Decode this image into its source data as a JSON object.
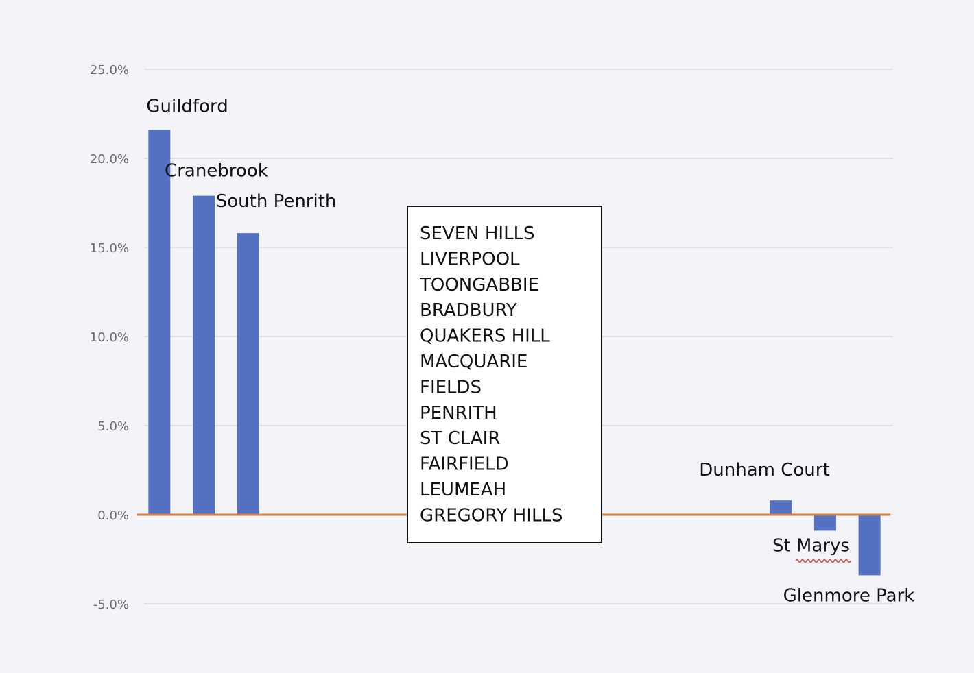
{
  "chart_data": {
    "type": "bar",
    "title": "",
    "xlabel": "",
    "ylabel": "",
    "ylim": [
      -0.05,
      0.25
    ],
    "yticks": [
      "25.0%",
      "20.0%",
      "15.0%",
      "10.0%",
      "5.0%",
      "0.0%",
      "-5.0%"
    ],
    "grid": true,
    "categories": [
      "Guildford",
      "Cranebrook",
      "South Penrith",
      "SEVEN HILLS",
      "LIVERPOOL",
      "TOONGABBIE",
      "BRADBURY",
      "QUAKERS HILL",
      "MACQUARIE FIELDS",
      "PENRITH",
      "ST CLAIR",
      "FAIRFIELD",
      "LEUMEAH",
      "GREGORY HILLS",
      "Dunham Court",
      "St Marys",
      "Glenmore Park"
    ],
    "values": [
      0.216,
      0.179,
      0.158,
      null,
      null,
      null,
      null,
      null,
      null,
      null,
      null,
      null,
      null,
      null,
      0.008,
      -0.009,
      -0.034
    ],
    "labelled_bars": [
      {
        "label": "Guildford",
        "value": 0.216
      },
      {
        "label": "Cranebrook",
        "value": 0.179
      },
      {
        "label": "South Penrith",
        "value": 0.158
      },
      {
        "label": "Dunham Court",
        "value": 0.008
      },
      {
        "label": "St Marys",
        "value": -0.009
      },
      {
        "label": "Glenmore Park",
        "value": -0.034
      }
    ],
    "text_box": {
      "lines": [
        "SEVEN HILLS",
        "LIVERPOOL",
        "TOONGABBIE",
        "BRADBURY",
        "QUAKERS HILL",
        "MACQUARIE",
        "FIELDS",
        "PENRITH",
        "ST CLAIR",
        "FAIRFIELD",
        "LEUMEAH",
        "GREGORY HILLS"
      ]
    },
    "colors": {
      "bar": "#5470c1",
      "zero_line": "#e07b39",
      "grid": "#d9d9dd",
      "background": "#f3f4f8"
    }
  }
}
